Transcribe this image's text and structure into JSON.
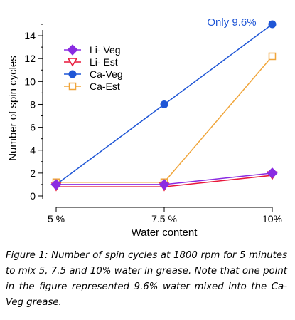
{
  "chart_data": {
    "type": "line",
    "categories": [
      "5 %",
      "7.5 %",
      "10%"
    ],
    "xlabel": "Water content",
    "ylabel": "Number of spin cycles",
    "ylim": [
      0,
      15
    ],
    "yticks": [
      0,
      2,
      4,
      6,
      8,
      10,
      12,
      14
    ],
    "grid": false,
    "legend_position": "top-left",
    "series": [
      {
        "name": "Li- Veg",
        "values": [
          1,
          1,
          2
        ],
        "color": "#8a2be2",
        "marker": "diamond-filled"
      },
      {
        "name": "Li- Est",
        "values": [
          0.8,
          0.8,
          1.8
        ],
        "color": "#e8173a",
        "marker": "triangle-down-open"
      },
      {
        "name": "Ca-Veg",
        "values": [
          1,
          8,
          15
        ],
        "color": "#1f56d6",
        "marker": "circle-filled"
      },
      {
        "name": "Ca-Est",
        "values": [
          1.2,
          1.2,
          12.2
        ],
        "color": "#f0a53a",
        "marker": "square-open"
      }
    ],
    "annotations": [
      {
        "text": "Only 9.6%",
        "color": "#1f56d6"
      }
    ]
  },
  "caption": "Figure 1: Number of spin cycles at 1800 rpm for 5 minutes to mix 5, 7.5 and 10% water in grease. Note that one point in the figure represented 9.6% water mixed into the Ca-Veg grease."
}
